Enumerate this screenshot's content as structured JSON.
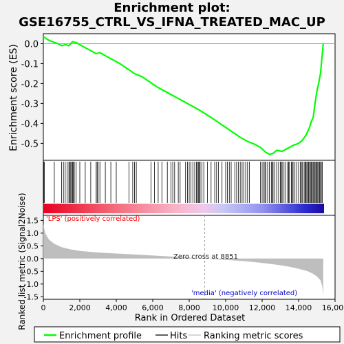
{
  "title_line1": "Enrichment plot:",
  "title_line2": "GSE16755_CTRL_VS_IFNA_TREATED_MAC_UP",
  "colors": {
    "enrichment_line": "#00ff00",
    "hits": "#000000",
    "metric_fill": "#bebebe",
    "positive_label": "#ff0000",
    "negative_label": "#0000cc"
  },
  "chart_data": [
    {
      "type": "line",
      "ylabel": "Enrichment score (ES)",
      "xlim": [
        0,
        16000
      ],
      "ylim": [
        -0.585,
        0.05
      ],
      "y_ticks": [
        0.0,
        -0.1,
        -0.2,
        -0.3,
        -0.4,
        -0.5
      ],
      "y_tick_labels": [
        "0.0",
        "-0.1",
        "-0.2",
        "-0.3",
        "-0.4",
        "-0.5"
      ],
      "series": [
        {
          "name": "Enrichment profile",
          "x": [
            0,
            250,
            500,
            800,
            1000,
            1200,
            1400,
            1600,
            1800,
            2000,
            2300,
            2600,
            2900,
            3100,
            3400,
            3800,
            4200,
            4600,
            5000,
            5400,
            5800,
            6200,
            6600,
            7000,
            7500,
            8000,
            8500,
            8851,
            9200,
            9600,
            10000,
            10400,
            10800,
            11200,
            11600,
            11900,
            12200,
            12400,
            12600,
            12800,
            13100,
            13400,
            13700,
            14000,
            14200,
            14400,
            14600,
            14700,
            14800,
            14900,
            15000,
            15100,
            15200,
            15300,
            15350
          ],
          "y": [
            0.035,
            0.02,
            0.01,
            0.0,
            -0.01,
            -0.005,
            -0.01,
            0.01,
            0.005,
            -0.005,
            -0.02,
            -0.035,
            -0.05,
            -0.045,
            -0.06,
            -0.08,
            -0.1,
            -0.125,
            -0.15,
            -0.165,
            -0.19,
            -0.215,
            -0.235,
            -0.255,
            -0.28,
            -0.305,
            -0.33,
            -0.35,
            -0.37,
            -0.395,
            -0.42,
            -0.445,
            -0.47,
            -0.49,
            -0.505,
            -0.52,
            -0.545,
            -0.555,
            -0.55,
            -0.535,
            -0.54,
            -0.525,
            -0.51,
            -0.5,
            -0.485,
            -0.46,
            -0.42,
            -0.39,
            -0.37,
            -0.3,
            -0.24,
            -0.2,
            -0.15,
            -0.05,
            0.0
          ]
        }
      ]
    },
    {
      "type": "bar",
      "name": "Hits",
      "hit_positions": [
        20,
        60,
        600,
        1000,
        1100,
        1200,
        1300,
        1400,
        1450,
        1500,
        1550,
        1600,
        1650,
        1700,
        1800,
        2000,
        2300,
        2600,
        2900,
        2950,
        3000,
        3100,
        3400,
        3700,
        4000,
        4700,
        4900,
        5000,
        5100,
        5900,
        6100,
        6300,
        6500,
        6800,
        7000,
        7100,
        7200,
        7400,
        7500,
        7800,
        7900,
        8000,
        8100,
        8200,
        8300,
        8400,
        8450,
        8500,
        8550,
        8600,
        8700,
        8800,
        9000,
        9200,
        9400,
        9500,
        9600,
        9800,
        10000,
        10100,
        10200,
        10300,
        10500,
        10600,
        10700,
        10800,
        10900,
        11000,
        11100,
        11200,
        11300,
        11900,
        12000,
        12100,
        12150,
        12200,
        12300,
        12400,
        12500,
        12550,
        12600,
        12700,
        12800,
        12900,
        13000,
        13050,
        13100,
        13200,
        13300,
        13400,
        13450,
        13500,
        13600,
        13650,
        13700,
        13800,
        13900,
        14000,
        14100,
        14150,
        14200,
        14300,
        14350,
        14400,
        14450,
        14500,
        14550,
        14600,
        14650,
        14700,
        14750,
        14800,
        14850,
        14900,
        14950,
        15000,
        15050,
        15100,
        15150,
        15200,
        15250,
        15300
      ]
    },
    {
      "type": "area",
      "xlabel": "Rank in Ordered Dataset",
      "ylabel": "Ranked list metric (Signal2Noise)",
      "xlim": [
        0,
        16000
      ],
      "ylim": [
        -1.6,
        1.7
      ],
      "x_ticks": [
        0,
        2000,
        4000,
        6000,
        8000,
        10000,
        12000,
        14000,
        16000
      ],
      "x_tick_labels": [
        "0",
        "2,000",
        "4,000",
        "6,000",
        "8,000",
        "10,000",
        "12,000",
        "14,000",
        "16,000"
      ],
      "y_ticks": [
        1.5,
        1.0,
        0.5,
        0.0,
        -0.5,
        -1.0,
        -1.5
      ],
      "y_tick_labels": [
        "1.5",
        "1.0",
        "0.5",
        "0.0",
        "-0.5",
        "-1.0",
        "-1.5"
      ],
      "series": [
        {
          "name": "Ranking metric scores",
          "x": [
            0,
            100,
            300,
            600,
            1000,
            1500,
            2000,
            3000,
            4000,
            5000,
            6000,
            7000,
            8000,
            8851,
            10000,
            11000,
            12000,
            13000,
            13500,
            14000,
            14500,
            14800,
            15000,
            15200,
            15300,
            15350
          ],
          "y": [
            1.35,
            1.0,
            0.75,
            0.58,
            0.45,
            0.36,
            0.3,
            0.24,
            0.2,
            0.16,
            0.12,
            0.08,
            0.04,
            0.0,
            -0.05,
            -0.1,
            -0.17,
            -0.26,
            -0.32,
            -0.4,
            -0.5,
            -0.6,
            -0.7,
            -0.85,
            -1.1,
            -1.5
          ]
        }
      ],
      "zero_cross_label": "Zero cross at 8851",
      "zero_cross": 8851,
      "positive_label": "'LPS' (positively correlated)",
      "negative_label": "'media' (negatively correlated)"
    }
  ],
  "legend": {
    "enrichment": "Enrichment profile",
    "hits": "Hits",
    "ranking": "Ranking metric scores"
  }
}
